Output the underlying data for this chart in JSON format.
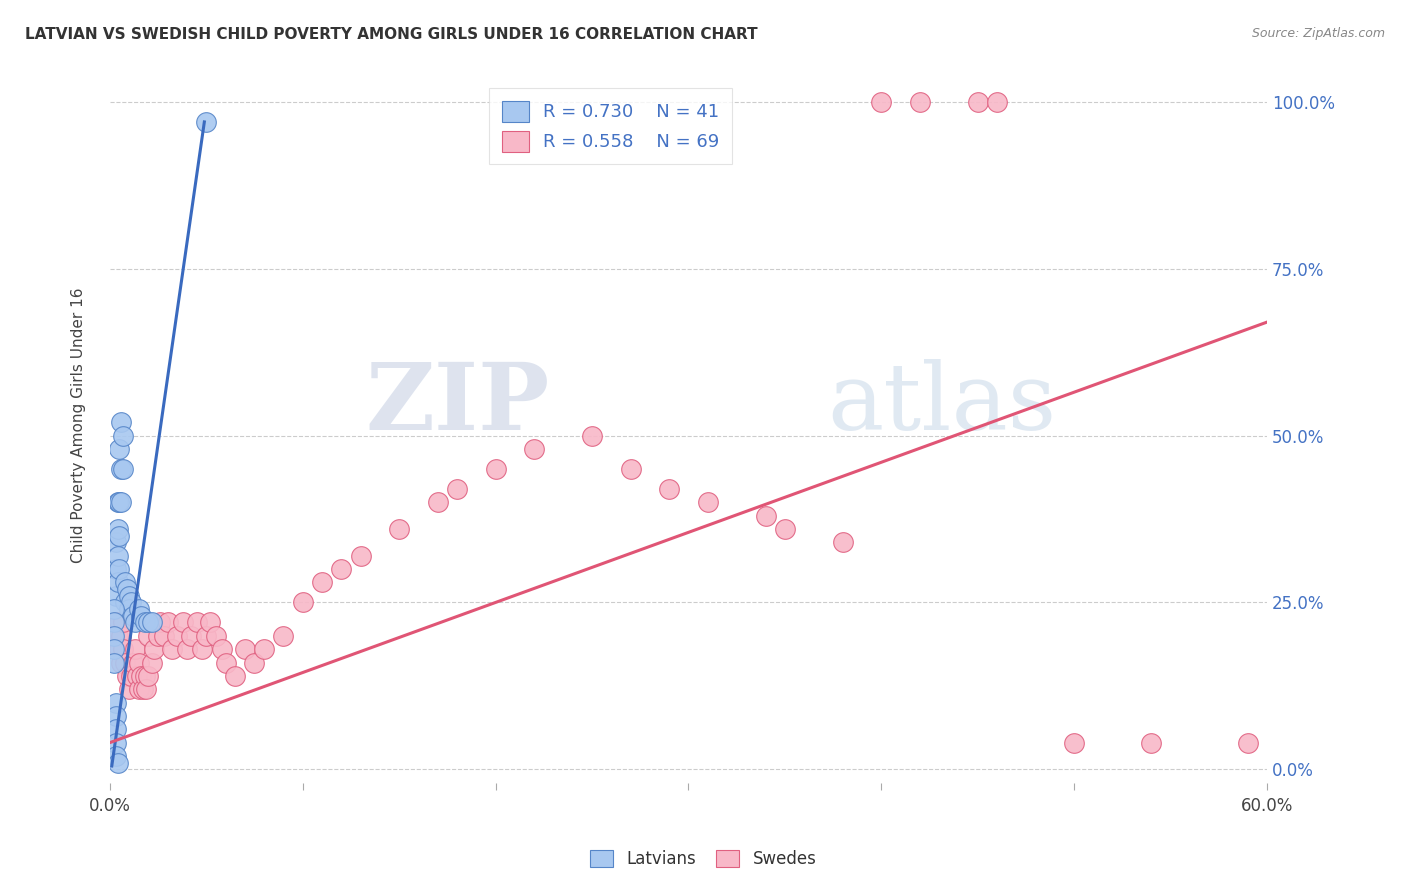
{
  "title": "LATVIAN VS SWEDISH CHILD POVERTY AMONG GIRLS UNDER 16 CORRELATION CHART",
  "source": "Source: ZipAtlas.com",
  "ylabel": "Child Poverty Among Girls Under 16",
  "ytick_labels": [
    "0.0%",
    "25.0%",
    "50.0%",
    "75.0%",
    "100.0%"
  ],
  "ytick_values": [
    0,
    0.25,
    0.5,
    0.75,
    1.0
  ],
  "xlim": [
    0,
    0.6
  ],
  "ylim": [
    -0.02,
    1.05
  ],
  "legend_blue_r": "R = 0.730",
  "legend_blue_n": "N = 41",
  "legend_pink_r": "R = 0.558",
  "legend_pink_n": "N = 69",
  "blue_color": "#a8c8f0",
  "pink_color": "#f8b8c8",
  "blue_edge_color": "#5585c8",
  "pink_edge_color": "#e06080",
  "blue_line_color": "#3a6abf",
  "pink_line_color": "#e05575",
  "blue_scatter_x": [
    0.003,
    0.003,
    0.003,
    0.004,
    0.004,
    0.004,
    0.004,
    0.005,
    0.005,
    0.005,
    0.005,
    0.006,
    0.006,
    0.006,
    0.007,
    0.007,
    0.008,
    0.008,
    0.009,
    0.01,
    0.01,
    0.011,
    0.012,
    0.013,
    0.015,
    0.016,
    0.018,
    0.002,
    0.002,
    0.002,
    0.002,
    0.002,
    0.003,
    0.003,
    0.003,
    0.003,
    0.003,
    0.004,
    0.02,
    0.022,
    0.05
  ],
  "blue_scatter_y": [
    0.26,
    0.3,
    0.34,
    0.28,
    0.32,
    0.36,
    0.4,
    0.3,
    0.35,
    0.4,
    0.48,
    0.4,
    0.45,
    0.52,
    0.45,
    0.5,
    0.25,
    0.28,
    0.27,
    0.26,
    0.24,
    0.25,
    0.23,
    0.22,
    0.24,
    0.23,
    0.22,
    0.24,
    0.22,
    0.2,
    0.18,
    0.16,
    0.1,
    0.08,
    0.06,
    0.04,
    0.02,
    0.01,
    0.22,
    0.22,
    0.97
  ],
  "pink_scatter_x": [
    0.003,
    0.004,
    0.005,
    0.005,
    0.006,
    0.006,
    0.007,
    0.007,
    0.008,
    0.009,
    0.01,
    0.011,
    0.012,
    0.013,
    0.014,
    0.015,
    0.015,
    0.016,
    0.017,
    0.018,
    0.019,
    0.02,
    0.02,
    0.022,
    0.023,
    0.025,
    0.026,
    0.028,
    0.03,
    0.032,
    0.035,
    0.038,
    0.04,
    0.042,
    0.045,
    0.048,
    0.05,
    0.052,
    0.055,
    0.058,
    0.06,
    0.065,
    0.07,
    0.075,
    0.08,
    0.09,
    0.1,
    0.11,
    0.12,
    0.13,
    0.15,
    0.17,
    0.18,
    0.2,
    0.22,
    0.25,
    0.27,
    0.29,
    0.31,
    0.34,
    0.35,
    0.38,
    0.4,
    0.42,
    0.45,
    0.46,
    0.5,
    0.54,
    0.59
  ],
  "pink_scatter_y": [
    0.22,
    0.2,
    0.18,
    0.22,
    0.16,
    0.2,
    0.18,
    0.22,
    0.16,
    0.14,
    0.12,
    0.14,
    0.16,
    0.18,
    0.14,
    0.12,
    0.16,
    0.14,
    0.12,
    0.14,
    0.12,
    0.14,
    0.2,
    0.16,
    0.18,
    0.2,
    0.22,
    0.2,
    0.22,
    0.18,
    0.2,
    0.22,
    0.18,
    0.2,
    0.22,
    0.18,
    0.2,
    0.22,
    0.2,
    0.18,
    0.16,
    0.14,
    0.18,
    0.16,
    0.18,
    0.2,
    0.25,
    0.28,
    0.3,
    0.32,
    0.36,
    0.4,
    0.42,
    0.45,
    0.48,
    0.5,
    0.45,
    0.42,
    0.4,
    0.38,
    0.36,
    0.34,
    1.0,
    1.0,
    1.0,
    1.0,
    0.04,
    0.04,
    0.04
  ],
  "blue_trend_x": [
    0.001,
    0.049
  ],
  "blue_trend_y": [
    0.005,
    0.97
  ],
  "pink_trend_x": [
    0.0,
    0.6
  ],
  "pink_trend_y": [
    0.04,
    0.67
  ],
  "watermark_zip": "ZIP",
  "watermark_atlas": "atlas",
  "title_fontsize": 11,
  "source_fontsize": 9,
  "legend_fontsize": 13,
  "tick_label_color_right": "#4472c4",
  "grid_color": "#cccccc",
  "background_color": "#ffffff"
}
